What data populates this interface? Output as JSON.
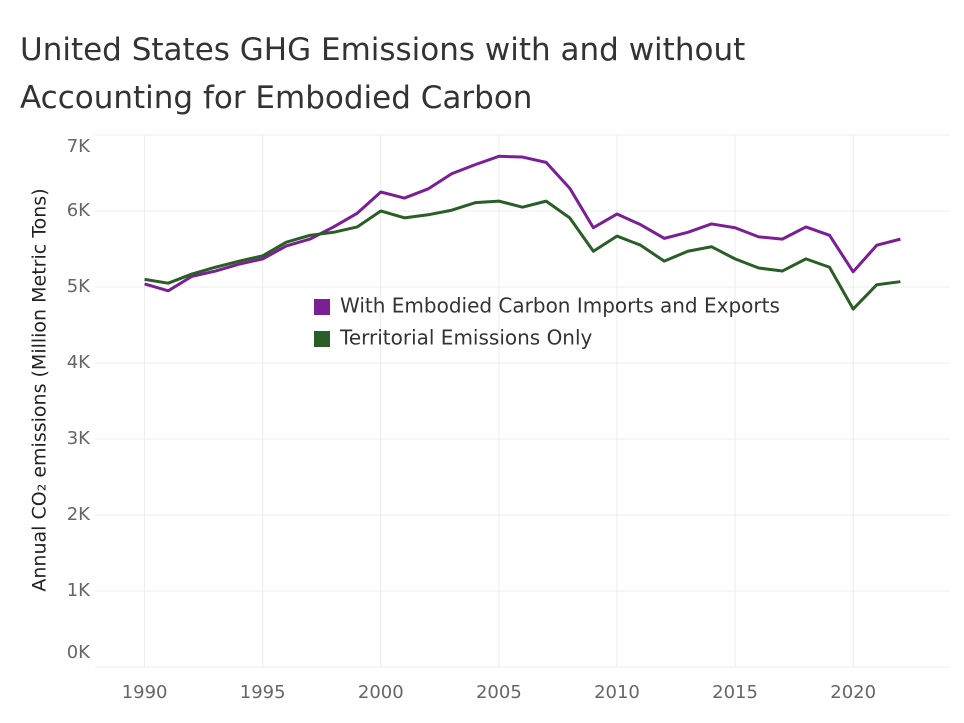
{
  "chart_data": {
    "type": "line",
    "title": [
      "United States GHG Emissions with and without",
      "Accounting for Embodied Carbon"
    ],
    "y_label": "Annual CO₂ emissions (Million Metric Tons)",
    "x": [
      1990,
      1991,
      1992,
      1993,
      1994,
      1995,
      1996,
      1997,
      1998,
      1999,
      2000,
      2001,
      2002,
      2003,
      2004,
      2005,
      2006,
      2007,
      2008,
      2009,
      2010,
      2011,
      2012,
      2013,
      2014,
      2015,
      2016,
      2017,
      2018,
      2019,
      2020,
      2021,
      2022
    ],
    "series": [
      {
        "name": "With Embodied Carbon Imports and Exports",
        "color": "#7a1f94",
        "values": [
          5040,
          4950,
          5140,
          5210,
          5300,
          5370,
          5540,
          5630,
          5790,
          5970,
          6250,
          6170,
          6290,
          6490,
          6610,
          6720,
          6710,
          6640,
          6300,
          5780,
          5960,
          5820,
          5640,
          5720,
          5830,
          5780,
          5660,
          5630,
          5790,
          5680,
          5200,
          5550,
          5630
        ]
      },
      {
        "name": "Territorial Emissions Only",
        "color": "#2a5e27",
        "values": [
          5100,
          5050,
          5170,
          5260,
          5340,
          5410,
          5590,
          5680,
          5720,
          5790,
          6000,
          5910,
          5950,
          6010,
          6110,
          6130,
          6050,
          6130,
          5910,
          5470,
          5670,
          5550,
          5340,
          5470,
          5530,
          5370,
          5250,
          5210,
          5370,
          5260,
          4710,
          5030,
          5070
        ]
      }
    ],
    "xlim": [
      1987.9,
      2024.1
    ],
    "xticks": [
      1990,
      1995,
      2000,
      2005,
      2010,
      2015,
      2020
    ],
    "ylim": [
      0,
      7000
    ],
    "yticks": [
      {
        "value": 0,
        "label": "0K"
      },
      {
        "value": 1000,
        "label": "1K"
      },
      {
        "value": 2000,
        "label": "2K"
      },
      {
        "value": 3000,
        "label": "3K"
      },
      {
        "value": 4000,
        "label": "4K"
      },
      {
        "value": 5000,
        "label": "5K"
      },
      {
        "value": 6000,
        "label": "6K"
      },
      {
        "value": 7000,
        "label": "7K"
      }
    ],
    "grid": true
  }
}
